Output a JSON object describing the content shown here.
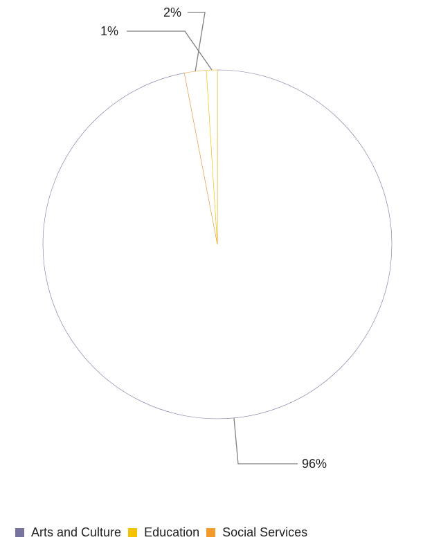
{
  "chart_data": {
    "type": "pie",
    "title": "",
    "categories": [
      "Arts and Culture",
      "Education",
      "Social Services"
    ],
    "values": [
      96,
      1,
      2
    ],
    "labels": [
      "96%",
      "1%",
      "2%"
    ],
    "colors": [
      "#76739f",
      "#f5c200",
      "#f39a2b"
    ],
    "legend_position": "bottom-left"
  },
  "legend": {
    "items": [
      {
        "label": "Arts and Culture",
        "color": "#76739f"
      },
      {
        "label": "Education",
        "color": "#f5c200"
      },
      {
        "label": "Social Services",
        "color": "#f39a2b"
      }
    ]
  }
}
